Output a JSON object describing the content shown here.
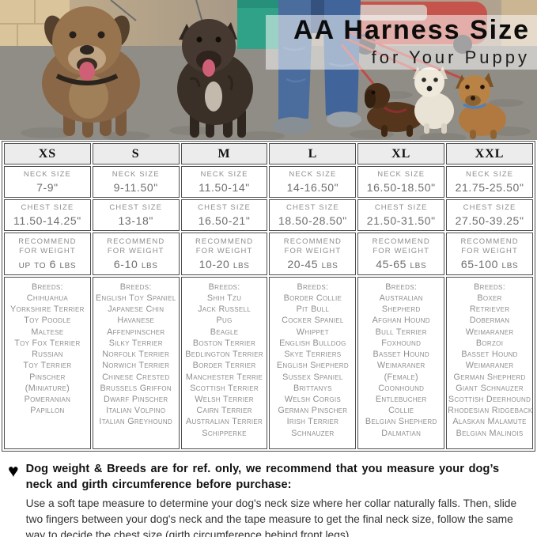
{
  "hero": {
    "title": "AA Harness Size",
    "subtitle": "for Your Puppy",
    "photo_alt": "dog walker in blue jeans walking five dogs on a cobblestone street",
    "colors": {
      "wall": "#d9c49c",
      "pavement": "#908d86",
      "overlay": "rgba(255,255,255,0.52)",
      "car_red": "#c5544d",
      "dumpster_green": "#2fa287",
      "jeans_blue": "#4a6d9e",
      "big_dog_brown": "#8a6747",
      "brindle_dog": "#3b3028",
      "dachshund_brown": "#55361d",
      "white_dog": "#e9e3d5",
      "tan_dog": "#b1793f",
      "leash_red": "#c34a45",
      "tongue_pink": "#cf5f74"
    }
  },
  "table": {
    "labels": {
      "neck": "Neck Size",
      "chest": "Chest Size",
      "weight_1": "Recommend",
      "weight_2": "for Weight",
      "breeds": "Breeds:"
    },
    "columns": [
      {
        "size": "XS",
        "neck": "7-9\"",
        "chest": "11.50-14.25\"",
        "weight": "up to 6 lbs",
        "breeds": [
          "Chihuahua",
          "Yorkshire Terrier",
          "Toy Poodle",
          "Maltese",
          "Toy Fox Terrier",
          "Russian",
          "Toy Terrier",
          "Pinscher",
          "(Miniature)",
          "Pomeranian",
          "Papillon"
        ]
      },
      {
        "size": "S",
        "neck": "9-11.50\"",
        "chest": "13-18\"",
        "weight": "6-10 lbs",
        "breeds": [
          "English Toy Spaniel",
          "Japanese Chin",
          "Havanese",
          "Affenpinscher",
          "Silky Terrier",
          "Norfolk Terrier",
          "Norwich Terrier",
          "Chinese Crested",
          "Brussels Griffon",
          "Dwarf Pinscher",
          "Italian Volpino",
          "Italian Greyhound"
        ]
      },
      {
        "size": "M",
        "neck": "11.50-14\"",
        "chest": "16.50-21\"",
        "weight": "10-20 lbs",
        "breeds": [
          "Shih Tzu",
          "Jack Russell",
          "Pug",
          "Beagle",
          "Boston Terrier",
          "Bedlington Terrier",
          "Border Terrier",
          "Manchester Terrie",
          "Scottish Terrier",
          "Welsh Terrier",
          "Cairn Terrier",
          "Australian Terrier",
          "Schipperke"
        ]
      },
      {
        "size": "L",
        "neck": "14-16.50\"",
        "chest": "18.50-28.50\"",
        "weight": "20-45 lbs",
        "breeds": [
          "Border Collie",
          "Pit Bull",
          "Cocker Spaniel",
          "Whippet",
          "English Bulldog",
          "Skye Terriers",
          "English Shepherd",
          "Sussex Spaniel",
          "Brittanys",
          "Welsh Corgis",
          "German Pinscher",
          "Irish Terrier",
          "Schnauzer"
        ]
      },
      {
        "size": "XL",
        "neck": "16.50-18.50\"",
        "chest": "21.50-31.50\"",
        "weight": "45-65 lbs",
        "breeds": [
          "Australian",
          "Shepherd",
          "Afghan Hound",
          "Bull Terrier",
          "Foxhound",
          "Basset Hound",
          "Weimaraner",
          "(Female)",
          "Coonhound",
          "Entlebucher",
          "Collie",
          "Belgian Shepherd",
          "Dalmatian"
        ]
      },
      {
        "size": "XXL",
        "neck": "21.75-25.50\"",
        "chest": "27.50-39.25\"",
        "weight": "65-100 lbs",
        "breeds": [
          "Boxer",
          "Retriever",
          "Doberman",
          "Weimaraner",
          "Borzoi",
          "Basset Hound",
          "Weimaraner",
          "German Shepherd",
          "Giant Schnauzer",
          "Scottish Deerhound",
          "Rhodesian Ridgeback",
          "Alaskan Malamute",
          "Belgian Malinois"
        ]
      }
    ]
  },
  "note": {
    "heart_glyph": "♥",
    "heading": "Dog weight & Breeds are for ref. only, we recommend that you measure your dog’s neck and girth circumference before purchase:",
    "body": "Use a soft tape measure to determine your dog's neck size where her collar naturally falls. Then, slide two fingers between your dog's neck and the tape measure to get the final neck size, follow the same way to decide the chest size (girth circumference behind front legs)."
  },
  "ui_colors": {
    "table_border": "#4f4f4f",
    "header_bg": "#ececec",
    "label_gray": "#8e8e8e",
    "value_gray": "#6e6e6e",
    "breed_gray": "#8f8f8f",
    "title_black": "#0c0c0c",
    "note_text": "#333333"
  }
}
